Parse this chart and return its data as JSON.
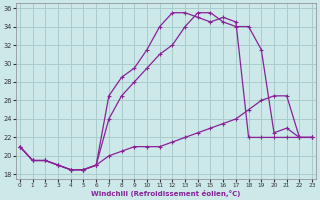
{
  "xlabel": "Windchill (Refroidissement éolien,°C)",
  "background_color": "#cce8e8",
  "grid_color": "#aacccc",
  "line_color": "#882299",
  "x_ticks": [
    0,
    1,
    2,
    3,
    4,
    5,
    6,
    7,
    8,
    9,
    10,
    11,
    12,
    13,
    14,
    15,
    16,
    17,
    18,
    19,
    20,
    21,
    22,
    23
  ],
  "y_ticks": [
    18,
    20,
    22,
    24,
    26,
    28,
    30,
    32,
    34,
    36
  ],
  "xlim": [
    -0.3,
    23.3
  ],
  "ylim": [
    17.5,
    36.5
  ],
  "series1_x": [
    0,
    1,
    2,
    3,
    4,
    5,
    6,
    7,
    8,
    9,
    10,
    11,
    12,
    13,
    14,
    15,
    16,
    17,
    18,
    19,
    20,
    21,
    22,
    23
  ],
  "series1_y": [
    21.0,
    19.5,
    19.5,
    19.0,
    18.5,
    18.5,
    19.0,
    20.0,
    20.5,
    21.0,
    21.0,
    21.0,
    21.5,
    22.0,
    22.5,
    23.0,
    23.5,
    24.0,
    25.0,
    26.0,
    26.5,
    26.5,
    22.0,
    22.0
  ],
  "series2_x": [
    0,
    1,
    2,
    3,
    4,
    5,
    6,
    7,
    8,
    9,
    10,
    11,
    12,
    13,
    14,
    15,
    16,
    17,
    18,
    19,
    20,
    21,
    22,
    23
  ],
  "series2_y": [
    21.0,
    19.5,
    19.5,
    19.0,
    18.5,
    18.5,
    19.0,
    24.0,
    26.5,
    28.0,
    29.5,
    31.0,
    32.0,
    34.0,
    35.5,
    35.5,
    34.5,
    34.0,
    34.0,
    31.5,
    22.5,
    23.0,
    22.0,
    22.0
  ],
  "series3_x": [
    0,
    1,
    2,
    3,
    4,
    5,
    6,
    7,
    8,
    9,
    10,
    11,
    12,
    13,
    14,
    15,
    16,
    17,
    18,
    19,
    20,
    21,
    22,
    23
  ],
  "series3_y": [
    21.0,
    19.5,
    19.5,
    19.0,
    18.5,
    18.5,
    19.0,
    26.5,
    28.5,
    29.5,
    31.5,
    34.0,
    35.5,
    35.5,
    35.0,
    34.5,
    35.0,
    34.5,
    22.0,
    22.0,
    22.0,
    22.0,
    22.0,
    22.0
  ]
}
